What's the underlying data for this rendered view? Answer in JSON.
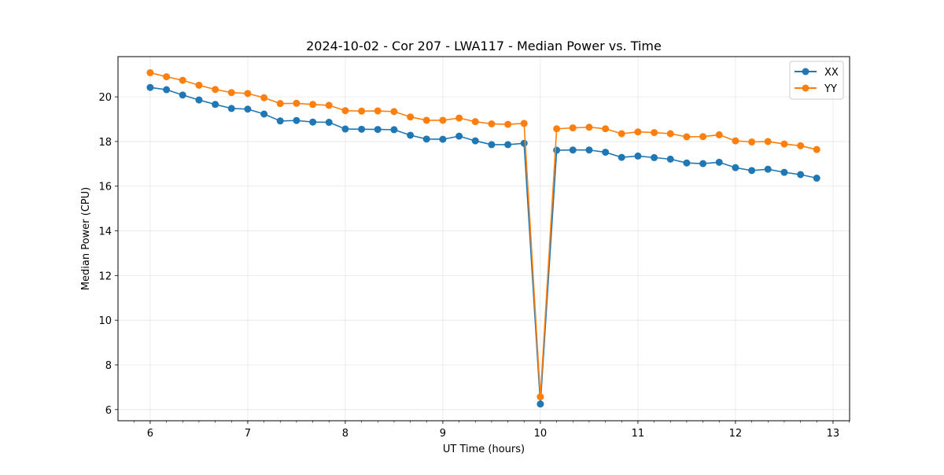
{
  "chart_data": {
    "type": "line",
    "title": "2024-10-02 - Cor 207 - LWA117 - Median Power vs. Time",
    "xlabel": "UT Time (hours)",
    "ylabel": "Median Power (CPU)",
    "xlim": [
      5.67,
      13.17
    ],
    "ylim": [
      5.5,
      21.8
    ],
    "xticks": [
      6,
      7,
      8,
      9,
      10,
      11,
      12,
      13
    ],
    "yticks": [
      6,
      8,
      10,
      12,
      14,
      16,
      18,
      20
    ],
    "grid": true,
    "legend_position": "top-right",
    "x": [
      6.0,
      6.167,
      6.333,
      6.5,
      6.667,
      6.833,
      7.0,
      7.167,
      7.333,
      7.5,
      7.667,
      7.833,
      8.0,
      8.167,
      8.333,
      8.5,
      8.667,
      8.833,
      9.0,
      9.167,
      9.333,
      9.5,
      9.667,
      9.833,
      10.0,
      10.167,
      10.333,
      10.5,
      10.667,
      10.833,
      11.0,
      11.167,
      11.333,
      11.5,
      11.667,
      11.833,
      12.0,
      12.167,
      12.333,
      12.5,
      12.667,
      12.833
    ],
    "series": [
      {
        "name": "XX",
        "color": "#1f77b4",
        "values": [
          20.42,
          20.32,
          20.08,
          19.86,
          19.66,
          19.48,
          19.45,
          19.23,
          18.92,
          18.94,
          18.87,
          18.86,
          18.56,
          18.55,
          18.54,
          18.53,
          18.28,
          18.11,
          18.1,
          18.24,
          18.03,
          17.86,
          17.86,
          17.92,
          6.25,
          17.61,
          17.62,
          17.62,
          17.52,
          17.29,
          17.35,
          17.28,
          17.21,
          17.04,
          17.01,
          17.07,
          16.83,
          16.7,
          16.76,
          16.62,
          16.52,
          16.36
        ]
      },
      {
        "name": "YY",
        "color": "#ff7f0e",
        "values": [
          21.08,
          20.9,
          20.74,
          20.52,
          20.33,
          20.19,
          20.15,
          19.96,
          19.7,
          19.71,
          19.66,
          19.62,
          19.38,
          19.36,
          19.37,
          19.34,
          19.1,
          18.95,
          18.95,
          19.05,
          18.89,
          18.79,
          18.77,
          18.81,
          6.57,
          18.57,
          18.61,
          18.64,
          18.57,
          18.35,
          18.43,
          18.4,
          18.35,
          18.21,
          18.22,
          18.3,
          18.03,
          17.98,
          18.0,
          17.89,
          17.81,
          17.64
        ]
      }
    ]
  }
}
